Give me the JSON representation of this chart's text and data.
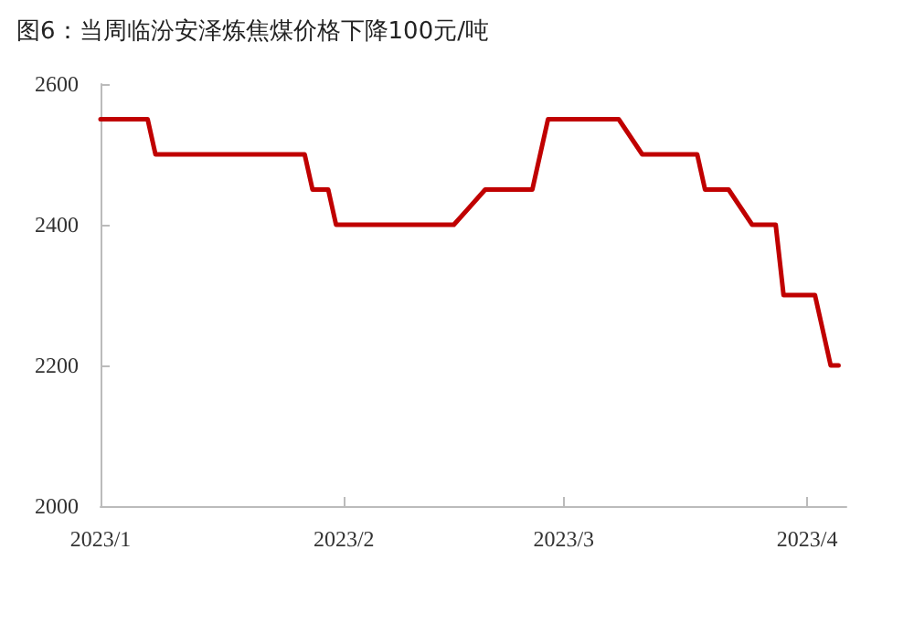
{
  "chart_data": {
    "type": "line",
    "title": "图6：当周临汾安泽炼焦煤价格下降100元/吨",
    "x": [
      "2023-01-01",
      "2023-01-07",
      "2023-01-08",
      "2023-01-27",
      "2023-01-28",
      "2023-01-30",
      "2023-01-31",
      "2023-02-15",
      "2023-02-19",
      "2023-02-25",
      "2023-02-27",
      "2023-03-08",
      "2023-03-11",
      "2023-03-18",
      "2023-03-19",
      "2023-03-22",
      "2023-03-25",
      "2023-03-28",
      "2023-03-29",
      "2023-04-02",
      "2023-04-04",
      "2023-04-05"
    ],
    "series": [
      {
        "color": "#c00000",
        "values": [
          2550,
          2550,
          2500,
          2500,
          2450,
          2450,
          2400,
          2400,
          2450,
          2450,
          2550,
          2550,
          2500,
          2500,
          2450,
          2450,
          2400,
          2400,
          2300,
          2300,
          2200,
          2200
        ]
      }
    ],
    "xlim": [
      "2023-01-01",
      "2023-04-06"
    ],
    "xticks": [
      {
        "value": "2023-01-01",
        "label": "2023/1"
      },
      {
        "value": "2023-02-01",
        "label": "2023/2"
      },
      {
        "value": "2023-03-01",
        "label": "2023/3"
      },
      {
        "value": "2023-04-01",
        "label": "2023/4"
      }
    ],
    "ylim": [
      2000,
      2600
    ],
    "yticks": [
      2000,
      2200,
      2400,
      2600
    ],
    "grid": false,
    "marker": "none",
    "line_style": "solid"
  }
}
